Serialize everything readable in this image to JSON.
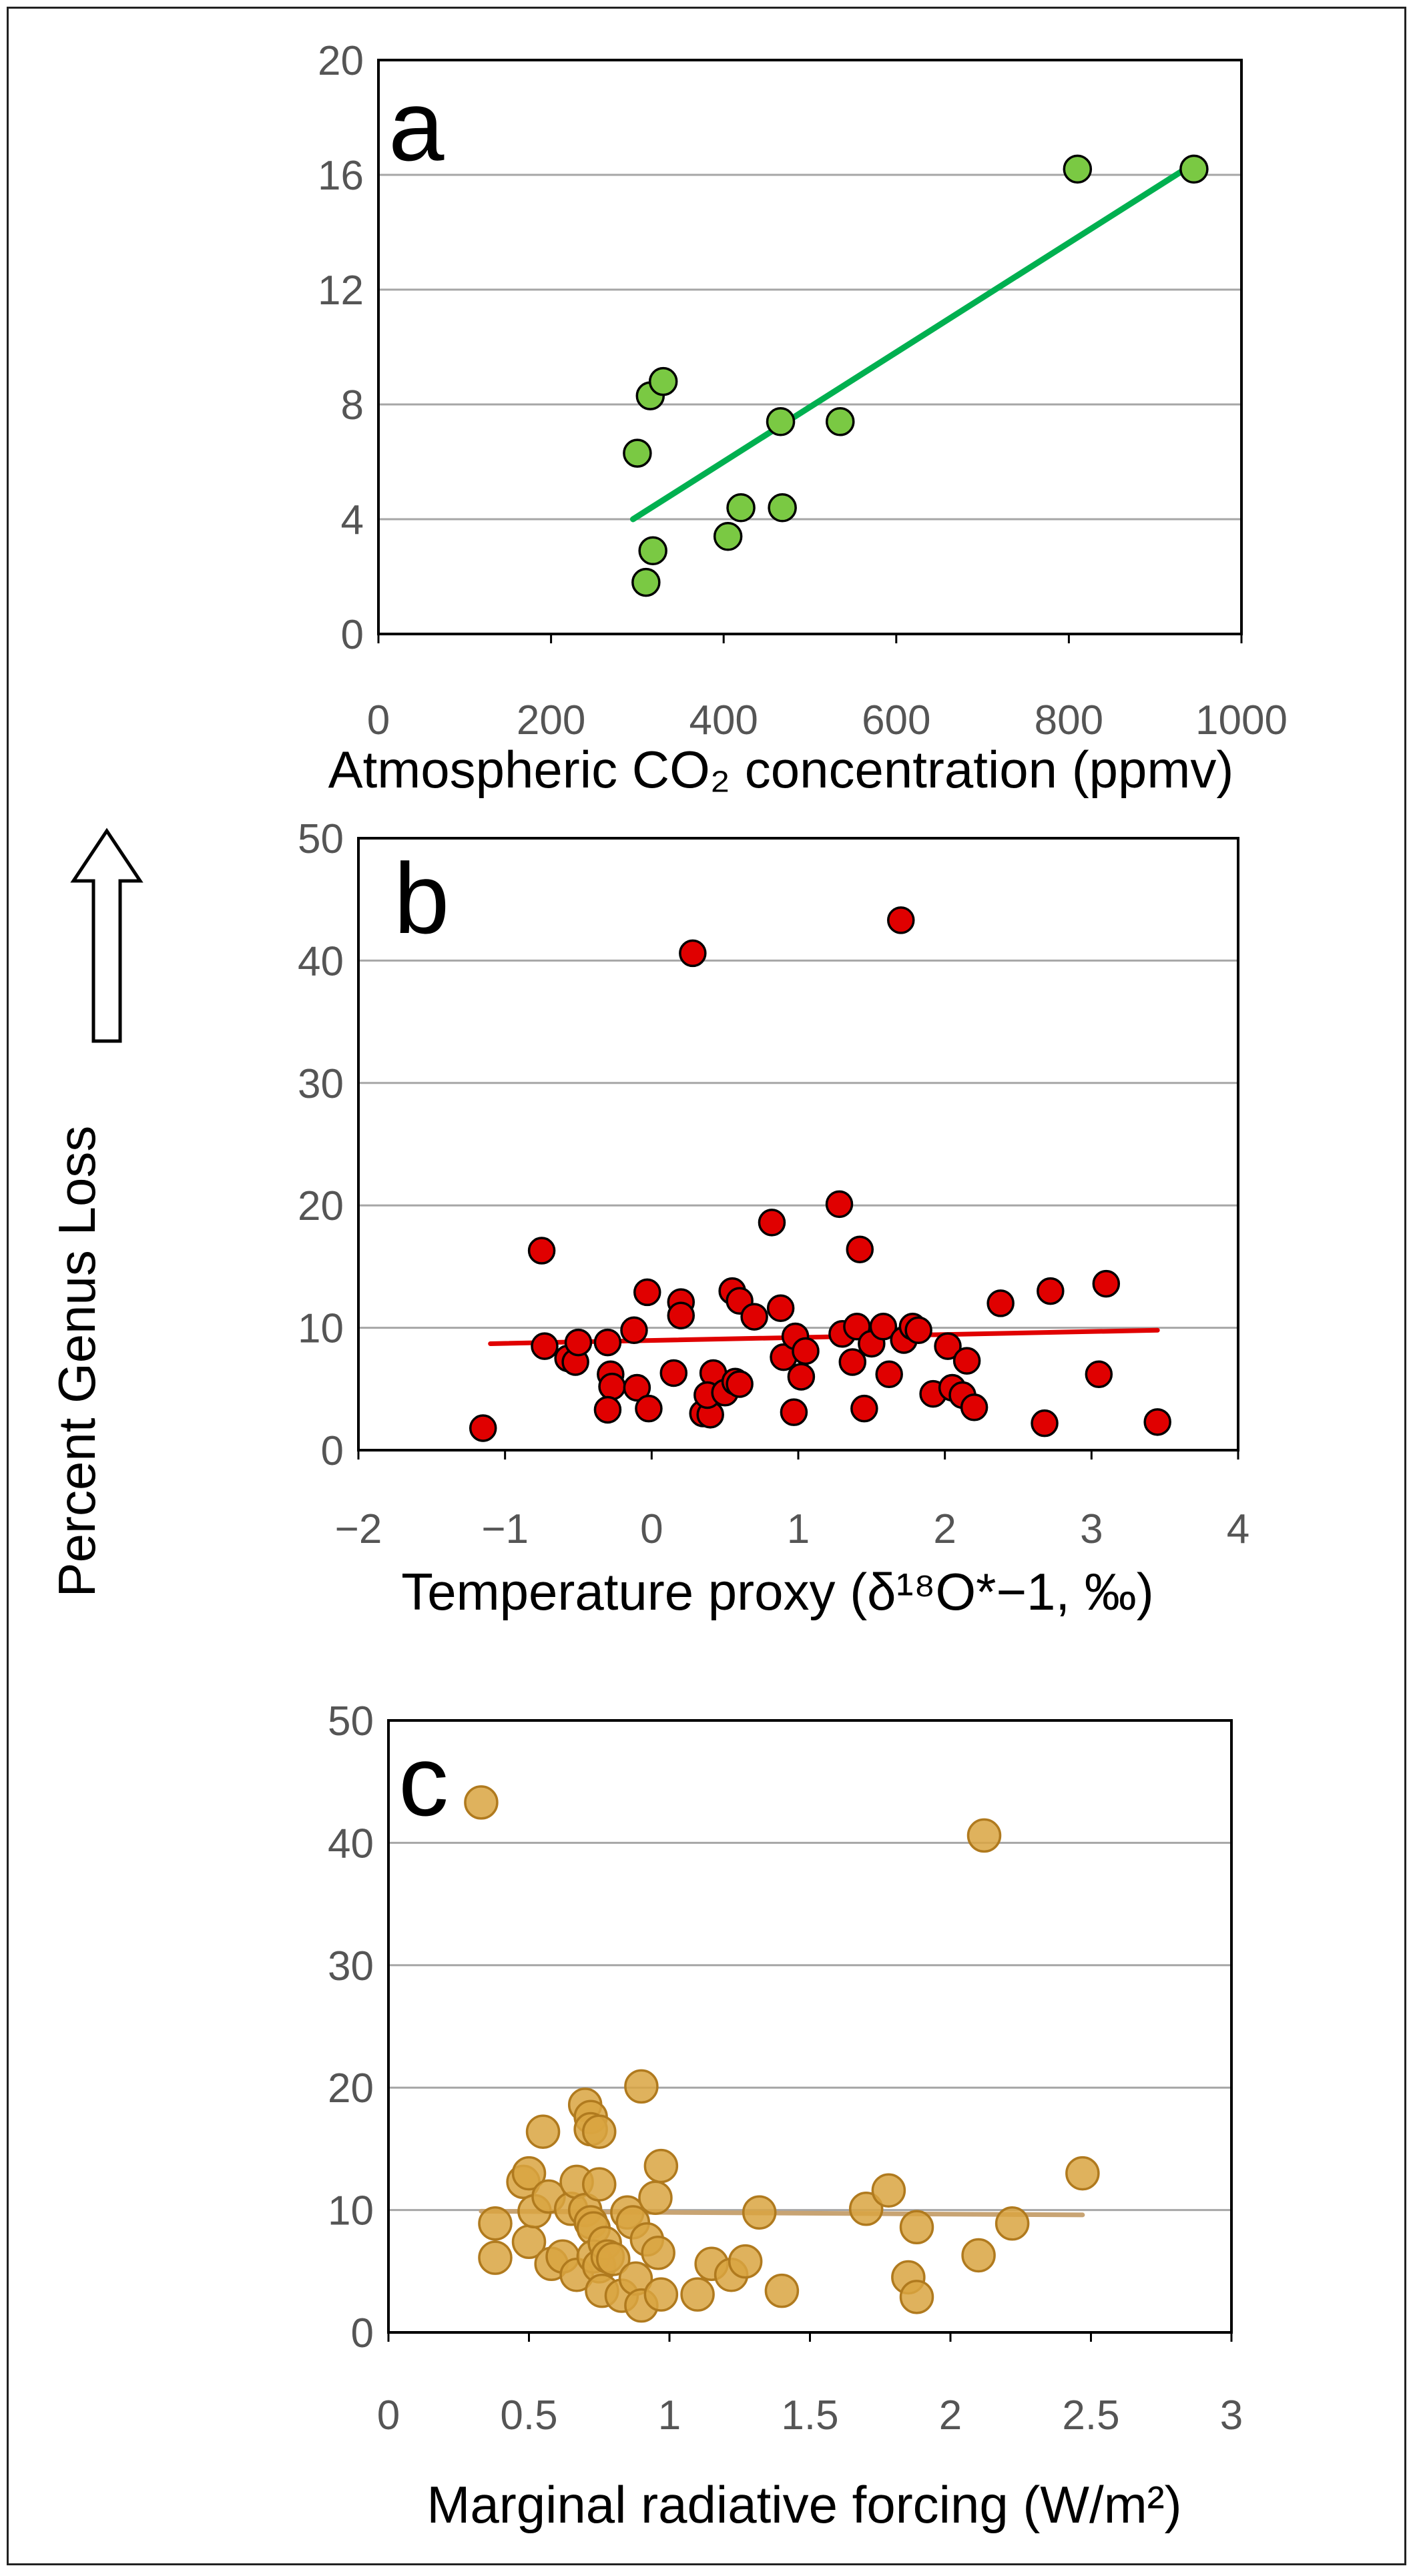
{
  "figure": {
    "shared_ylabel": "Percent Genus Loss"
  },
  "chart_data": [
    {
      "panel": "a",
      "type": "scatter",
      "xlabel": "Atmospheric CO₂ concentration (ppmv)",
      "ylabel": "Percent Genus Loss",
      "xlim": [
        0,
        1000
      ],
      "ylim": [
        0,
        20
      ],
      "xticks": [
        "0",
        "200",
        "400",
        "600",
        "800",
        "1000"
      ],
      "yticks": [
        "0",
        "4",
        "8",
        "12",
        "16",
        "20"
      ],
      "grid": true,
      "colors": {
        "marker": "#7ac943",
        "trend": "#00b050"
      },
      "points": [
        [
          300,
          6.3
        ],
        [
          315,
          8.3
        ],
        [
          330,
          8.8
        ],
        [
          310,
          1.8
        ],
        [
          318,
          2.9
        ],
        [
          405,
          3.4
        ],
        [
          420,
          4.4
        ],
        [
          468,
          4.4
        ],
        [
          466,
          7.4
        ],
        [
          535,
          7.4
        ],
        [
          810,
          16.2
        ],
        [
          945,
          16.2
        ]
      ],
      "trend": [
        [
          295,
          4.0
        ],
        [
          940,
          16.3
        ]
      ]
    },
    {
      "panel": "b",
      "type": "scatter",
      "xlabel": "Temperature proxy (δ¹⁸O*−1, ‰)",
      "ylabel": "Percent Genus Loss",
      "xlim": [
        -2,
        4
      ],
      "ylim": [
        0,
        50
      ],
      "xticks": [
        "−2",
        "−1",
        "0",
        "1",
        "2",
        "3",
        "4"
      ],
      "yticks": [
        "0",
        "10",
        "20",
        "30",
        "40",
        "50"
      ],
      "grid": true,
      "colors": {
        "marker": "#e00000",
        "trend": "#e00000"
      },
      "points": [
        [
          -1.15,
          1.8
        ],
        [
          -0.75,
          16.3
        ],
        [
          -0.73,
          8.5
        ],
        [
          -0.57,
          7.5
        ],
        [
          -0.52,
          7.2
        ],
        [
          -0.5,
          8.8
        ],
        [
          -0.3,
          8.8
        ],
        [
          -0.28,
          6.2
        ],
        [
          -0.27,
          5.2
        ],
        [
          -0.3,
          3.3
        ],
        [
          -0.12,
          9.8
        ],
        [
          -0.1,
          5.1
        ],
        [
          -0.03,
          12.9
        ],
        [
          -0.02,
          3.4
        ],
        [
          0.15,
          6.3
        ],
        [
          0.2,
          12.1
        ],
        [
          0.2,
          11.0
        ],
        [
          0.28,
          40.6
        ],
        [
          0.35,
          3.0
        ],
        [
          0.4,
          2.9
        ],
        [
          0.42,
          6.3
        ],
        [
          0.38,
          4.5
        ],
        [
          0.5,
          4.7
        ],
        [
          0.55,
          13.0
        ],
        [
          0.57,
          5.6
        ],
        [
          0.6,
          12.2
        ],
        [
          0.6,
          5.4
        ],
        [
          0.7,
          10.9
        ],
        [
          0.82,
          18.6
        ],
        [
          0.88,
          11.6
        ],
        [
          0.9,
          7.6
        ],
        [
          0.97,
          3.1
        ],
        [
          0.98,
          9.3
        ],
        [
          1.02,
          6.0
        ],
        [
          1.05,
          8.1
        ],
        [
          1.28,
          20.1
        ],
        [
          1.3,
          9.5
        ],
        [
          1.37,
          7.2
        ],
        [
          1.4,
          10.1
        ],
        [
          1.42,
          16.4
        ],
        [
          1.45,
          3.4
        ],
        [
          1.5,
          8.7
        ],
        [
          1.58,
          10.1
        ],
        [
          1.62,
          6.2
        ],
        [
          1.7,
          43.3
        ],
        [
          1.72,
          9.0
        ],
        [
          1.78,
          10.1
        ],
        [
          1.82,
          9.8
        ],
        [
          1.92,
          4.6
        ],
        [
          2.02,
          8.5
        ],
        [
          2.05,
          5.1
        ],
        [
          2.12,
          4.5
        ],
        [
          2.15,
          7.3
        ],
        [
          2.2,
          3.5
        ],
        [
          2.38,
          12.0
        ],
        [
          2.68,
          2.2
        ],
        [
          2.72,
          13.0
        ],
        [
          3.05,
          6.2
        ],
        [
          3.1,
          13.6
        ],
        [
          3.45,
          2.3
        ]
      ],
      "trend": [
        [
          -1.1,
          8.7
        ],
        [
          3.45,
          9.8
        ]
      ]
    },
    {
      "panel": "c",
      "type": "scatter",
      "xlabel": "Marginal radiative forcing (W/m²)",
      "ylabel": "Percent Genus Loss",
      "xlim": [
        0,
        3
      ],
      "ylim": [
        0,
        50
      ],
      "xticks": [
        "0",
        "0.5",
        "1",
        "1.5",
        "2",
        "2.5",
        "3"
      ],
      "yticks": [
        "0",
        "10",
        "20",
        "30",
        "40",
        "50"
      ],
      "grid": true,
      "colors": {
        "marker": "#d9a441",
        "edge": "#b07a1e",
        "trend": "#c8a473"
      },
      "points": [
        [
          0.33,
          43.3
        ],
        [
          0.38,
          8.9
        ],
        [
          0.38,
          6.1
        ],
        [
          0.48,
          12.3
        ],
        [
          0.5,
          13.0
        ],
        [
          0.5,
          7.4
        ],
        [
          0.52,
          9.9
        ],
        [
          0.55,
          16.4
        ],
        [
          0.57,
          11.1
        ],
        [
          0.58,
          5.6
        ],
        [
          0.62,
          6.2
        ],
        [
          0.65,
          10.1
        ],
        [
          0.67,
          12.3
        ],
        [
          0.67,
          4.7
        ],
        [
          0.7,
          10.0
        ],
        [
          0.7,
          18.6
        ],
        [
          0.72,
          17.6
        ],
        [
          0.72,
          16.6
        ],
        [
          0.72,
          9.0
        ],
        [
          0.73,
          8.5
        ],
        [
          0.73,
          6.2
        ],
        [
          0.75,
          5.4
        ],
        [
          0.75,
          16.4
        ],
        [
          0.75,
          12.1
        ],
        [
          0.76,
          3.4
        ],
        [
          0.77,
          7.3
        ],
        [
          0.78,
          6.2
        ],
        [
          0.8,
          6.0
        ],
        [
          0.83,
          3.0
        ],
        [
          0.85,
          9.8
        ],
        [
          0.87,
          9.0
        ],
        [
          0.88,
          4.4
        ],
        [
          0.9,
          2.2
        ],
        [
          0.9,
          20.1
        ],
        [
          0.92,
          7.6
        ],
        [
          0.95,
          11.0
        ],
        [
          0.96,
          6.5
        ],
        [
          0.97,
          13.6
        ],
        [
          0.97,
          3.1
        ],
        [
          1.1,
          3.1
        ],
        [
          1.15,
          5.6
        ],
        [
          1.22,
          4.7
        ],
        [
          1.27,
          5.8
        ],
        [
          1.32,
          9.8
        ],
        [
          1.4,
          3.4
        ],
        [
          1.7,
          10.1
        ],
        [
          1.78,
          11.6
        ],
        [
          1.85,
          4.5
        ],
        [
          1.88,
          8.6
        ],
        [
          1.88,
          2.9
        ],
        [
          2.1,
          6.3
        ],
        [
          2.12,
          40.6
        ],
        [
          2.22,
          8.9
        ],
        [
          2.47,
          13.0
        ]
      ],
      "trend": [
        [
          0.33,
          9.9
        ],
        [
          2.47,
          9.6
        ]
      ]
    }
  ]
}
